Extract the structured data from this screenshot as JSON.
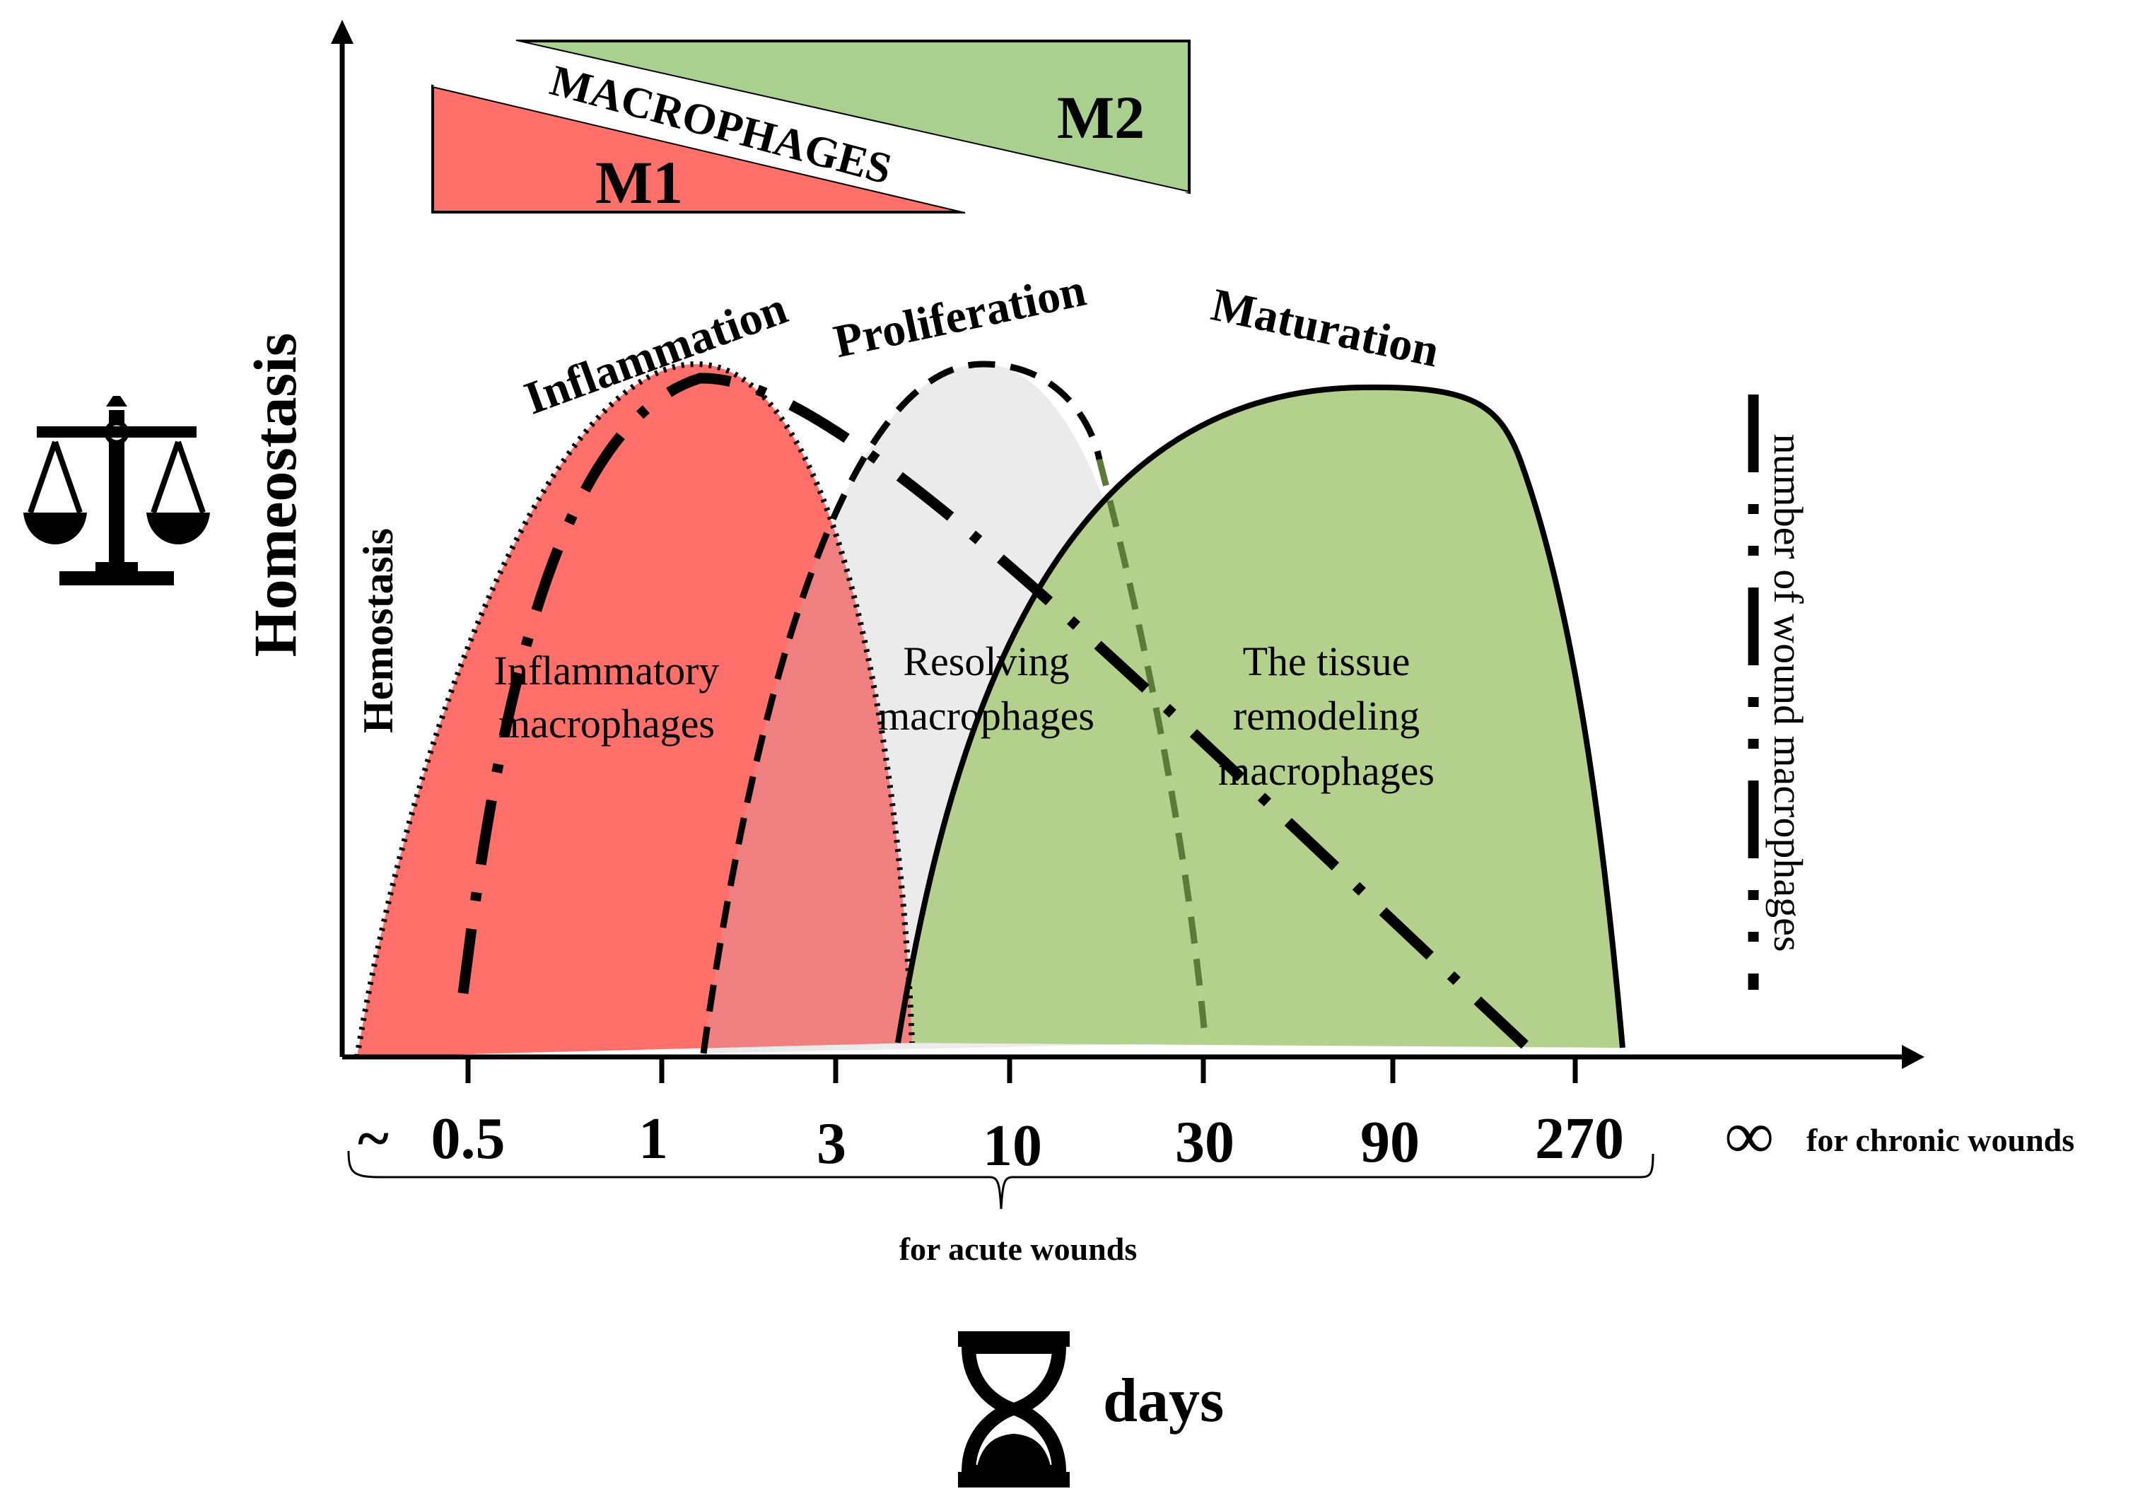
{
  "header": {
    "macrophages_label": "MACROPHAGES",
    "m1_label": "M1",
    "m2_label": "M2"
  },
  "axes": {
    "y_label": "Homeostasis",
    "x_label": "days",
    "x_ticks": [
      "~",
      "0.5",
      "1",
      "3",
      "10",
      "30",
      "90",
      "270"
    ],
    "infinity_symbol": "∞",
    "chronic_label": "for chronic wounds",
    "acute_label": "for acute wounds"
  },
  "phases": {
    "hemostasis": "Hemostasis",
    "inflammation": "Inflammation",
    "proliferation": "Proliferation",
    "maturation": "Maturation"
  },
  "regions": {
    "inflammatory_line1": "Inflammatory",
    "inflammatory_line2": "macrophages",
    "resolving_line1": "Resolving",
    "resolving_line2": "macrophages",
    "remodeling_line1": "The tissue",
    "remodeling_line2": "remodeling",
    "remodeling_line3": "macrophages"
  },
  "legend": {
    "label": "number of wound macrophages"
  },
  "icons": {
    "scale": "balance-scale-icon",
    "hourglass": "hourglass-icon"
  },
  "colors": {
    "inflammation_fill": "#ff706b",
    "proliferation_fill": "#ebebeb",
    "maturation_fill": "#b3d18c",
    "m1_fill": "#ff706b",
    "m2_fill": "#a9d08e",
    "overlap_fill": "#f08080"
  }
}
